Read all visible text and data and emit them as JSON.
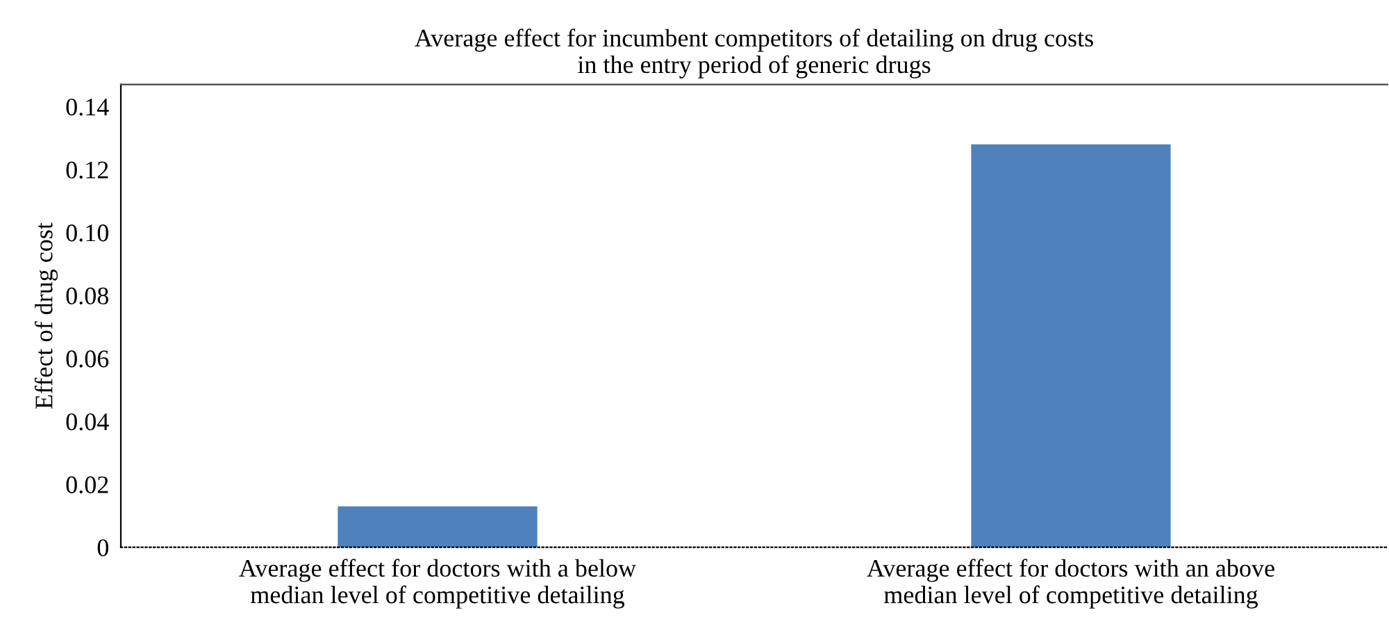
{
  "chart_data": {
    "type": "bar",
    "title": "Average effect for incumbent competitors of detailing on drug costs\nin the entry period of generic drugs",
    "ylabel": "Effect of drug cost",
    "categories": [
      "Average effect for doctors with a below\nmedian level of competitive detailing",
      "Average effect for doctors with an above\nmedian level of competitive detailing"
    ],
    "values": [
      0.013,
      0.128
    ],
    "color": "#4f81bd",
    "ylim": [
      0,
      0.147
    ],
    "yticks": [
      {
        "value": 0,
        "label": "0"
      },
      {
        "value": 0.02,
        "label": "0.02"
      },
      {
        "value": 0.04,
        "label": "0.04"
      },
      {
        "value": 0.06,
        "label": "0.06"
      },
      {
        "value": 0.08,
        "label": "0.08"
      },
      {
        "value": 0.1,
        "label": "0.10"
      },
      {
        "value": 0.12,
        "label": "0.12"
      },
      {
        "value": 0.14,
        "label": "0.14"
      }
    ],
    "grid": false,
    "legend": false
  }
}
